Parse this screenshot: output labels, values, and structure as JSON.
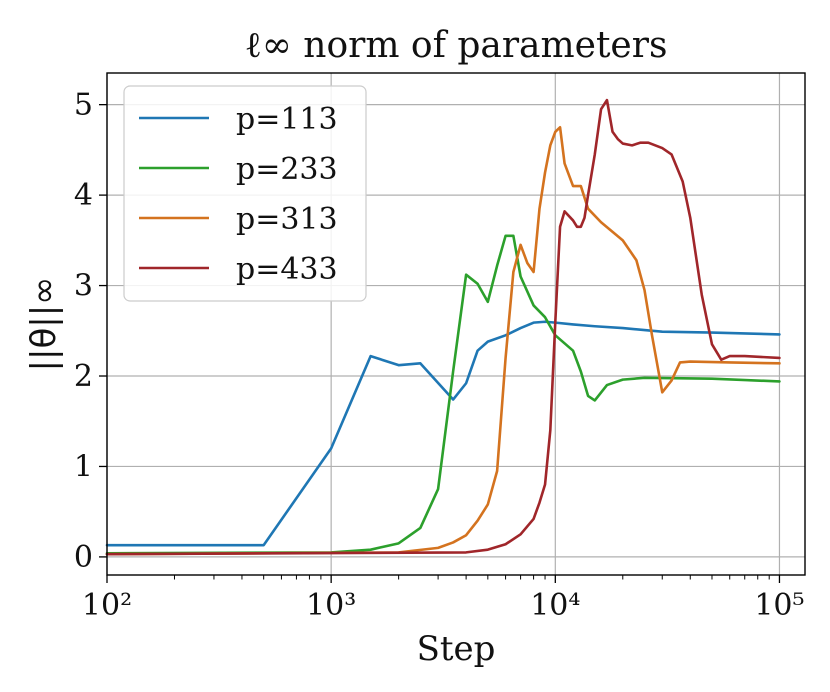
{
  "chart_data": {
    "type": "line",
    "title": "ℓ∞ norm of parameters",
    "xlabel": "Step",
    "ylabel": "||θ||∞",
    "xscale": "log",
    "xlim": [
      100,
      130000
    ],
    "ylim": [
      -0.2,
      5.35
    ],
    "xticks": [
      {
        "value": 100,
        "label": "10²"
      },
      {
        "value": 1000,
        "label": "10³"
      },
      {
        "value": 10000,
        "label": "10⁴"
      },
      {
        "value": 100000,
        "label": "10⁵"
      }
    ],
    "yticks": [
      0,
      1,
      2,
      3,
      4,
      5
    ],
    "grid": true,
    "legend_position": "top-left",
    "series": [
      {
        "name": "p=113",
        "color": "#1f77b4",
        "points": [
          [
            100,
            0.13
          ],
          [
            500,
            0.13
          ],
          [
            1000,
            1.2
          ],
          [
            1500,
            2.22
          ],
          [
            2000,
            2.12
          ],
          [
            2500,
            2.14
          ],
          [
            3500,
            1.74
          ],
          [
            4000,
            1.92
          ],
          [
            4500,
            2.28
          ],
          [
            5000,
            2.38
          ],
          [
            6000,
            2.45
          ],
          [
            7000,
            2.53
          ],
          [
            8000,
            2.59
          ],
          [
            9000,
            2.6
          ],
          [
            10000,
            2.59
          ],
          [
            12000,
            2.57
          ],
          [
            15000,
            2.55
          ],
          [
            20000,
            2.53
          ],
          [
            30000,
            2.49
          ],
          [
            50000,
            2.48
          ],
          [
            100000,
            2.46
          ]
        ]
      },
      {
        "name": "p=233",
        "color": "#2ca02c",
        "points": [
          [
            100,
            0.04
          ],
          [
            1000,
            0.05
          ],
          [
            1500,
            0.08
          ],
          [
            2000,
            0.15
          ],
          [
            2500,
            0.32
          ],
          [
            3000,
            0.75
          ],
          [
            3500,
            2.05
          ],
          [
            4000,
            3.12
          ],
          [
            4500,
            3.02
          ],
          [
            5000,
            2.82
          ],
          [
            5500,
            3.22
          ],
          [
            6000,
            3.55
          ],
          [
            6500,
            3.55
          ],
          [
            7000,
            3.1
          ],
          [
            8000,
            2.78
          ],
          [
            9000,
            2.65
          ],
          [
            10000,
            2.45
          ],
          [
            12000,
            2.28
          ],
          [
            13000,
            2.05
          ],
          [
            14000,
            1.78
          ],
          [
            15000,
            1.73
          ],
          [
            17000,
            1.9
          ],
          [
            20000,
            1.96
          ],
          [
            25000,
            1.98
          ],
          [
            50000,
            1.97
          ],
          [
            100000,
            1.94
          ]
        ]
      },
      {
        "name": "p=313",
        "color": "#d4731f",
        "points": [
          [
            100,
            0.03
          ],
          [
            2000,
            0.05
          ],
          [
            3000,
            0.1
          ],
          [
            3500,
            0.16
          ],
          [
            4000,
            0.24
          ],
          [
            4500,
            0.4
          ],
          [
            5000,
            0.58
          ],
          [
            5500,
            0.95
          ],
          [
            6000,
            2.2
          ],
          [
            6500,
            3.15
          ],
          [
            7000,
            3.45
          ],
          [
            7500,
            3.25
          ],
          [
            8000,
            3.15
          ],
          [
            8500,
            3.85
          ],
          [
            9000,
            4.25
          ],
          [
            9500,
            4.55
          ],
          [
            10000,
            4.7
          ],
          [
            10500,
            4.75
          ],
          [
            11000,
            4.35
          ],
          [
            12000,
            4.1
          ],
          [
            13000,
            4.1
          ],
          [
            14000,
            3.85
          ],
          [
            16000,
            3.7
          ],
          [
            20000,
            3.5
          ],
          [
            23000,
            3.28
          ],
          [
            25000,
            2.95
          ],
          [
            27000,
            2.45
          ],
          [
            30000,
            1.82
          ],
          [
            33000,
            1.95
          ],
          [
            36000,
            2.15
          ],
          [
            40000,
            2.16
          ],
          [
            60000,
            2.15
          ],
          [
            100000,
            2.14
          ]
        ]
      },
      {
        "name": "p=433",
        "color": "#a0262a",
        "points": [
          [
            100,
            0.03
          ],
          [
            4000,
            0.05
          ],
          [
            5000,
            0.08
          ],
          [
            6000,
            0.14
          ],
          [
            7000,
            0.25
          ],
          [
            8000,
            0.42
          ],
          [
            8500,
            0.6
          ],
          [
            9000,
            0.8
          ],
          [
            9500,
            1.4
          ],
          [
            10000,
            2.6
          ],
          [
            10500,
            3.65
          ],
          [
            11000,
            3.82
          ],
          [
            12000,
            3.72
          ],
          [
            12500,
            3.65
          ],
          [
            13000,
            3.65
          ],
          [
            13500,
            3.75
          ],
          [
            14000,
            4.0
          ],
          [
            15000,
            4.45
          ],
          [
            16000,
            4.95
          ],
          [
            17000,
            5.05
          ],
          [
            18000,
            4.7
          ],
          [
            19000,
            4.62
          ],
          [
            20000,
            4.57
          ],
          [
            22000,
            4.55
          ],
          [
            24000,
            4.58
          ],
          [
            26000,
            4.58
          ],
          [
            30000,
            4.52
          ],
          [
            33000,
            4.45
          ],
          [
            37000,
            4.15
          ],
          [
            40000,
            3.75
          ],
          [
            45000,
            2.9
          ],
          [
            50000,
            2.35
          ],
          [
            55000,
            2.18
          ],
          [
            60000,
            2.22
          ],
          [
            70000,
            2.22
          ],
          [
            100000,
            2.2
          ]
        ]
      }
    ]
  }
}
